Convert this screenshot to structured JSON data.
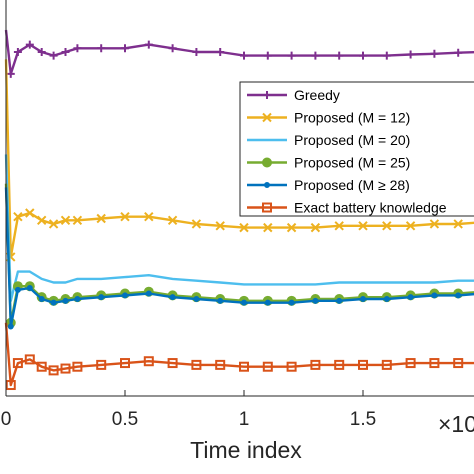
{
  "chart_data": {
    "type": "line",
    "xlabel": "Time index",
    "ylabel": "",
    "x_exponent_label": "×10",
    "xlim": [
      0,
      2
    ],
    "ylim": [
      0,
      100
    ],
    "xticks": [
      0,
      0.5,
      1,
      1.5
    ],
    "xtick_labels": [
      "0",
      "0.5",
      "1",
      "1.5"
    ],
    "grid": false,
    "legend_position": "right",
    "x": [
      0,
      0.02,
      0.05,
      0.1,
      0.15,
      0.2,
      0.25,
      0.3,
      0.4,
      0.5,
      0.6,
      0.7,
      0.8,
      0.9,
      1.0,
      1.1,
      1.2,
      1.3,
      1.4,
      1.5,
      1.6,
      1.7,
      1.8,
      1.9,
      2.0
    ],
    "series": [
      {
        "name": "Greedy",
        "color": "#7e2f8e",
        "marker": "plus",
        "values": [
          100,
          88,
          94,
          96,
          94,
          93,
          94,
          95,
          95,
          95,
          96,
          95,
          94,
          94,
          93,
          93,
          93,
          93,
          93,
          93,
          93,
          93.3,
          93.5,
          93.8,
          94
        ]
      },
      {
        "name": "Proposed (M = 12)",
        "color": "#edb120",
        "marker": "x",
        "values": [
          92,
          38,
          49,
          50,
          48,
          47,
          48,
          48,
          48.5,
          49,
          49,
          48,
          47,
          46.5,
          46,
          46,
          46,
          46,
          46.5,
          46.5,
          46.5,
          46.5,
          47,
          47,
          47.5
        ]
      },
      {
        "name": "Proposed (M = 20)",
        "color": "#4dbeee",
        "marker": "none",
        "values": [
          66,
          26,
          34,
          34,
          32,
          31,
          31,
          32,
          32,
          32.5,
          33,
          32,
          31.5,
          31,
          30.5,
          30.5,
          30.5,
          30.5,
          31,
          31,
          31,
          31,
          31,
          31.5,
          31.5
        ]
      },
      {
        "name": "Proposed (M = 25)",
        "color": "#77ac30",
        "marker": "circle",
        "values": [
          58,
          20,
          30,
          30,
          27,
          26,
          26.5,
          27,
          27.5,
          28,
          28.5,
          27.5,
          27,
          26.5,
          26,
          26,
          26,
          26.5,
          26.5,
          27,
          27,
          27.5,
          28,
          28,
          28.5
        ]
      },
      {
        "name": "Proposed (M ≥ 28)",
        "color": "#0072bd",
        "marker": "dot",
        "values": [
          57,
          19,
          29,
          29.5,
          26.5,
          25.5,
          26,
          26.5,
          27,
          27.5,
          28,
          27,
          26.5,
          26,
          25.5,
          25.5,
          25.5,
          26,
          26,
          26.5,
          26.5,
          27,
          27.5,
          27.5,
          28
        ]
      },
      {
        "name": "Exact battery knowledge",
        "color": "#d95319",
        "marker": "square",
        "values": [
          20,
          3,
          9,
          10,
          8,
          7,
          7.5,
          8,
          8.5,
          9,
          9.5,
          9,
          8.5,
          8.5,
          8,
          8,
          8,
          8.5,
          8.5,
          8.5,
          8.5,
          9,
          9,
          9,
          9
        ]
      }
    ]
  }
}
